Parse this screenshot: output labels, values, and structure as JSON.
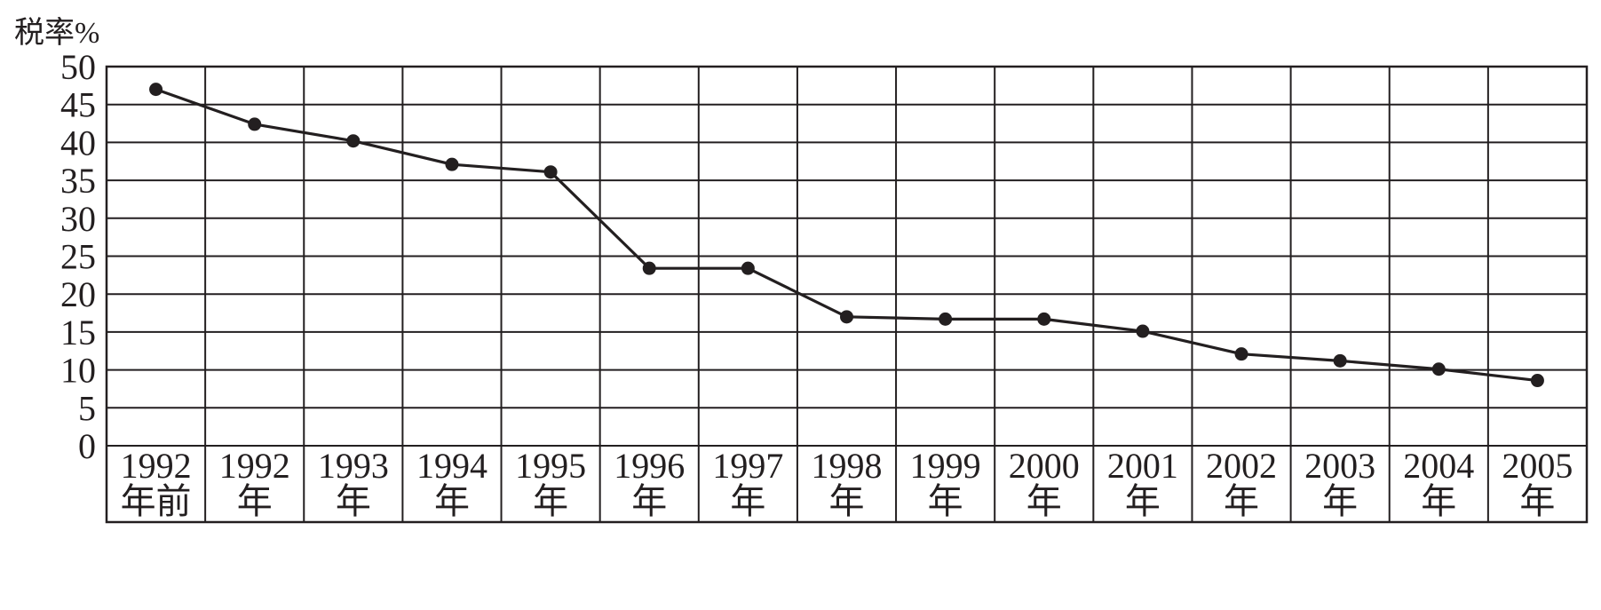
{
  "chart_data": {
    "type": "line",
    "title": "",
    "ylabel": "税率%",
    "xlabel": "",
    "ylim": [
      0,
      50
    ],
    "yticks": [
      0,
      5,
      10,
      15,
      20,
      25,
      30,
      35,
      40,
      45,
      50
    ],
    "grid": true,
    "categories": [
      {
        "year": "1992",
        "suffix": "年前"
      },
      {
        "year": "1992",
        "suffix": "年"
      },
      {
        "year": "1993",
        "suffix": "年"
      },
      {
        "year": "1994",
        "suffix": "年"
      },
      {
        "year": "1995",
        "suffix": "年"
      },
      {
        "year": "1996",
        "suffix": "年"
      },
      {
        "year": "1997",
        "suffix": "年"
      },
      {
        "year": "1998",
        "suffix": "年"
      },
      {
        "year": "1999",
        "suffix": "年"
      },
      {
        "year": "2000",
        "suffix": "年"
      },
      {
        "year": "2001",
        "suffix": "年"
      },
      {
        "year": "2002",
        "suffix": "年"
      },
      {
        "year": "2003",
        "suffix": "年"
      },
      {
        "year": "2004",
        "suffix": "年"
      },
      {
        "year": "2005",
        "suffix": "年"
      }
    ],
    "series": [
      {
        "values": [
          47.0,
          42.4,
          40.2,
          37.1,
          36.1,
          23.4,
          23.4,
          17.0,
          16.7,
          16.7,
          15.1,
          12.1,
          11.2,
          10.1,
          8.6
        ]
      }
    ]
  }
}
